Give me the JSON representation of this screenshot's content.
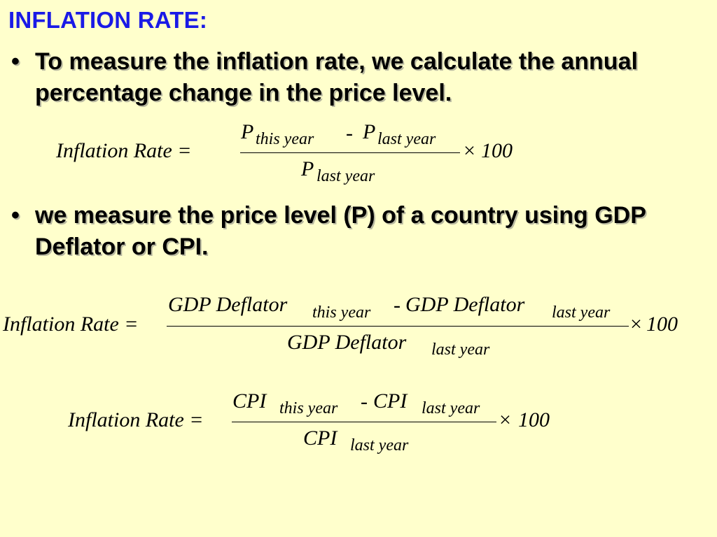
{
  "title": "INFLATION RATE:",
  "bullets": [
    {
      "symbol": "•",
      "text": "To measure the inflation rate, we calculate the annual percentage change in the price level."
    },
    {
      "symbol": "•",
      "text": "we measure the price level (P) of a country using GDP Deflator or CPI."
    }
  ],
  "formulas": [
    {
      "lhs": "Inflation Rate =",
      "num_term1": "P",
      "num_sub1": "this year",
      "minus": "-",
      "num_term2": "P",
      "num_sub2": "last year",
      "den_term": "P",
      "den_sub": "last year",
      "times": "×",
      "multiplier": "100"
    },
    {
      "lhs": "Inflation Rate =",
      "num_term1": "GDP Deflator",
      "num_sub1": "this year",
      "minus": "-",
      "num_term2": "GDP Deflator",
      "num_sub2": "last year",
      "den_term": "GDP Deflator",
      "den_sub": "last year",
      "times": "×",
      "multiplier": "100"
    },
    {
      "lhs": "Inflation Rate =",
      "num_term1": "CPI",
      "num_sub1": "this year",
      "minus": "-",
      "num_term2": "CPI",
      "num_sub2": "last year",
      "den_term": "CPI",
      "den_sub": "last year",
      "times": "×",
      "multiplier": "100"
    }
  ],
  "colors": {
    "background": "#ffffcc",
    "title": "#1a1ae6",
    "text": "#000000"
  }
}
